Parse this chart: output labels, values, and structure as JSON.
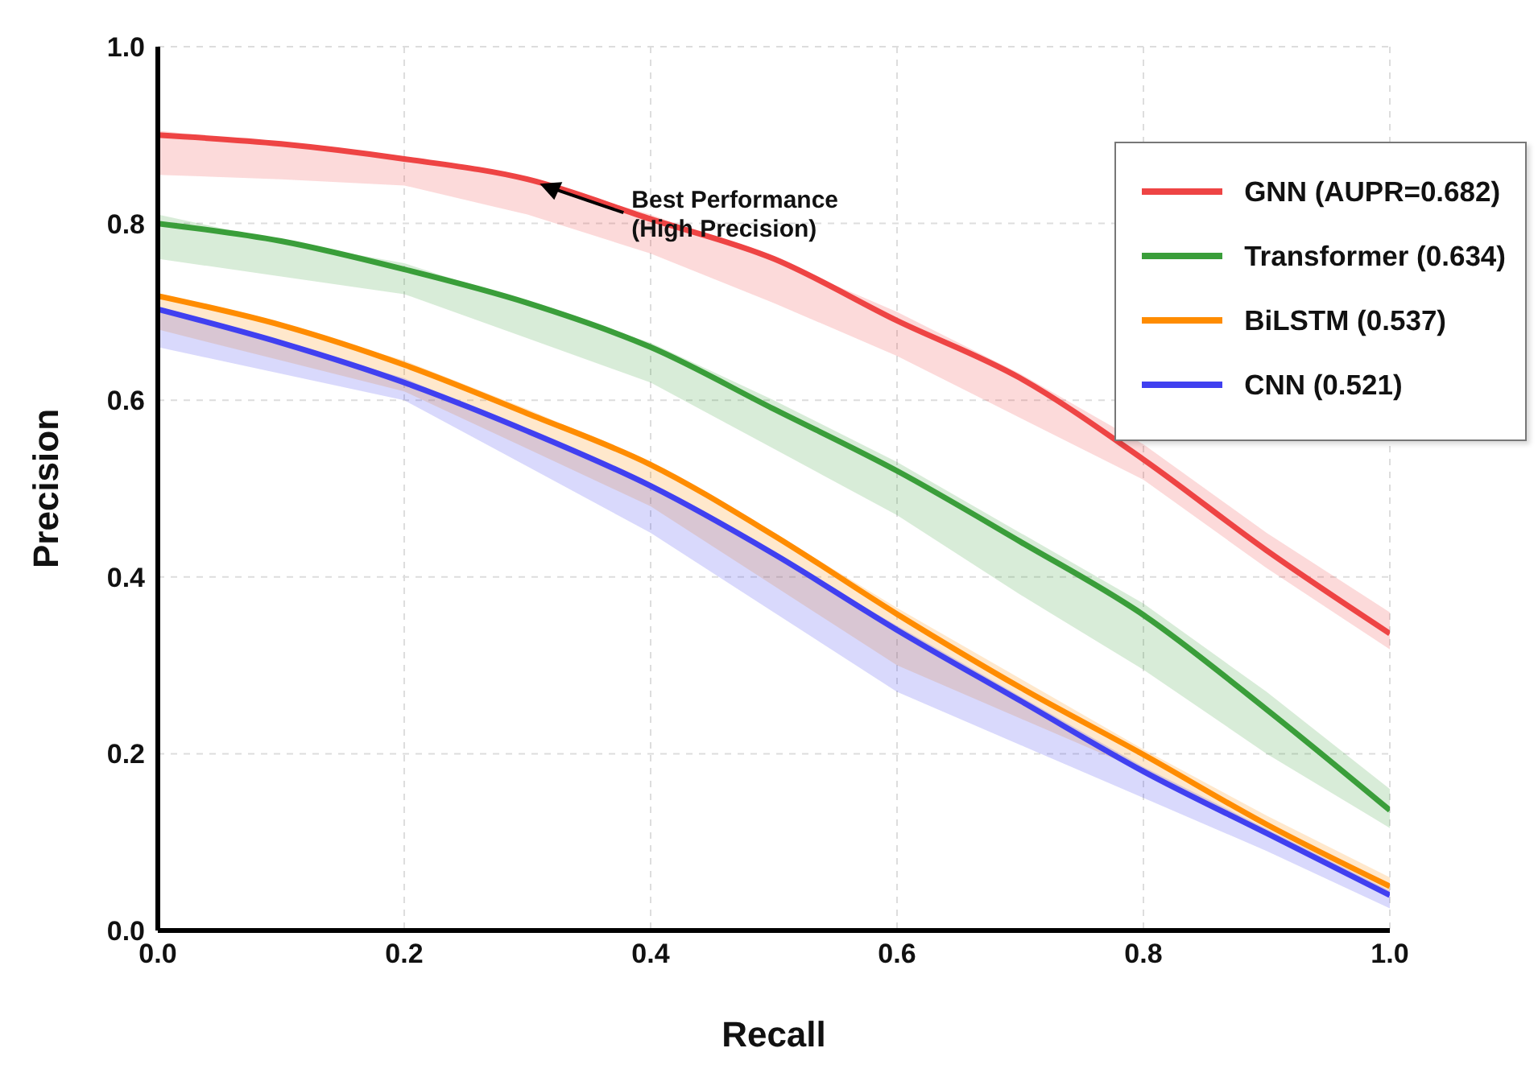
{
  "chart_data": {
    "type": "line",
    "xlabel": "Recall",
    "ylabel": "Precision",
    "x": [
      0,
      0.1,
      0.2,
      0.3,
      0.4,
      0.5,
      0.6,
      0.7,
      0.8,
      0.9,
      1.0
    ],
    "series": [
      {
        "name": "GNN (AUPR=0.682)",
        "color": "#ee4444",
        "values": [
          0.9,
          0.89,
          0.873,
          0.85,
          0.805,
          0.76,
          0.69,
          0.625,
          0.533,
          0.43,
          0.336
        ],
        "lower": [
          0.855,
          0.85,
          0.843,
          0.81,
          0.766,
          0.71,
          0.65,
          0.58,
          0.51,
          0.41,
          0.318
        ],
        "upper": [
          0.905,
          0.89,
          0.875,
          0.85,
          0.81,
          0.76,
          0.7,
          0.63,
          0.55,
          0.45,
          0.36
        ]
      },
      {
        "name": "Transformer (0.634)",
        "color": "#3a9e3a",
        "values": [
          0.8,
          0.78,
          0.748,
          0.71,
          0.66,
          0.59,
          0.52,
          0.44,
          0.357,
          0.25,
          0.136
        ],
        "lower": [
          0.76,
          0.74,
          0.72,
          0.67,
          0.62,
          0.545,
          0.47,
          0.38,
          0.295,
          0.2,
          0.116
        ],
        "upper": [
          0.81,
          0.78,
          0.755,
          0.71,
          0.665,
          0.6,
          0.53,
          0.45,
          0.37,
          0.27,
          0.16
        ]
      },
      {
        "name": "BiLSTM (0.537)",
        "color": "#ff8c00",
        "values": [
          0.718,
          0.685,
          0.64,
          0.585,
          0.527,
          0.447,
          0.358,
          0.275,
          0.199,
          0.12,
          0.05
        ],
        "lower": [
          0.68,
          0.645,
          0.61,
          0.545,
          0.48,
          0.39,
          0.3,
          0.24,
          0.18,
          0.11,
          0.04
        ],
        "upper": [
          0.72,
          0.685,
          0.645,
          0.59,
          0.53,
          0.45,
          0.365,
          0.285,
          0.205,
          0.13,
          0.06
        ]
      },
      {
        "name": "CNN (0.521)",
        "color": "#4040f0",
        "values": [
          0.703,
          0.665,
          0.62,
          0.565,
          0.503,
          0.426,
          0.34,
          0.26,
          0.18,
          0.11,
          0.04
        ],
        "lower": [
          0.66,
          0.63,
          0.6,
          0.525,
          0.45,
          0.36,
          0.27,
          0.21,
          0.15,
          0.09,
          0.025
        ],
        "upper": [
          0.705,
          0.665,
          0.625,
          0.565,
          0.505,
          0.425,
          0.345,
          0.265,
          0.185,
          0.115,
          0.045
        ]
      }
    ],
    "xlim": [
      0,
      1
    ],
    "ylim": [
      0,
      1
    ],
    "xticks": [
      {
        "value": 0,
        "label": "0.0"
      },
      0.2,
      0.4,
      0.6,
      0.8,
      {
        "value": 1,
        "label": "1.0"
      }
    ],
    "yticks": [
      {
        "value": 0,
        "label": "0.0"
      },
      0.2,
      0.4,
      0.6,
      0.8,
      {
        "value": 1,
        "label": "1.0"
      }
    ],
    "grid": true,
    "legend": "top right",
    "marker": "none",
    "line_style": "solid",
    "annotations": [
      {
        "text": "Best Performance\n(High Precision)",
        "x": 0.31,
        "y": 0.845
      }
    ]
  }
}
